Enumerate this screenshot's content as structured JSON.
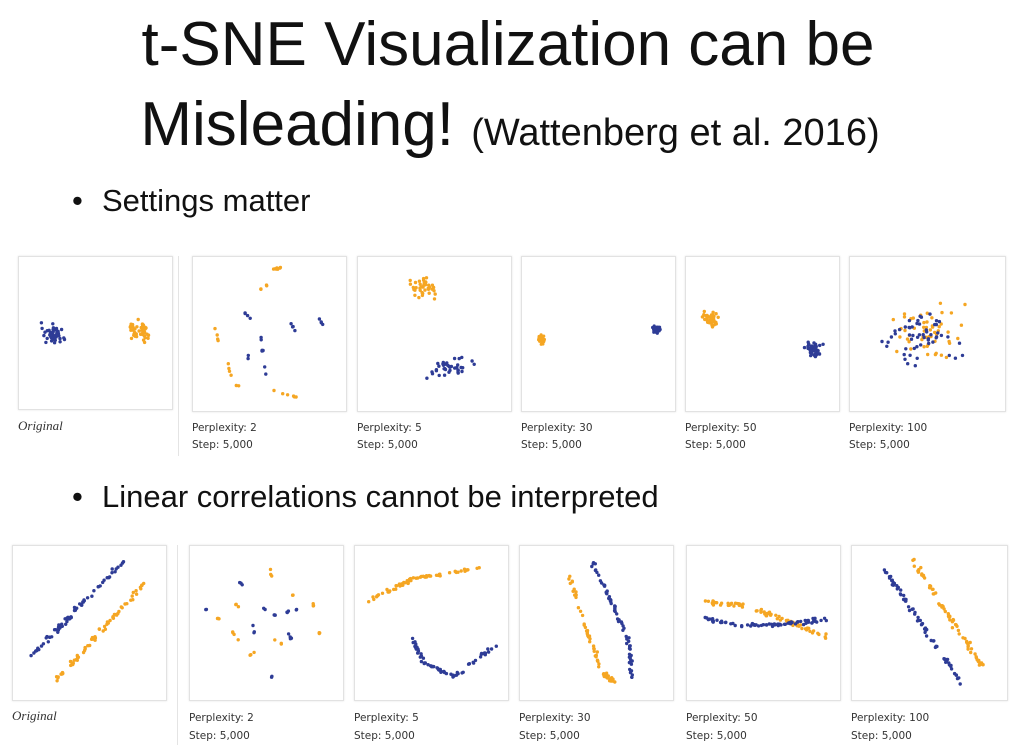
{
  "title": {
    "line1": "t-SNE Visualization can be",
    "line2": "Misleading!",
    "citation": "(Wattenberg et al. 2016)"
  },
  "bullet_symbol": "•",
  "sections": [
    {
      "bullet": "Settings matter",
      "original_label": "Original",
      "captions": [
        {
          "perplexity": "Perplexity: 2",
          "step": "Step: 5,000"
        },
        {
          "perplexity": "Perplexity: 5",
          "step": "Step: 5,000"
        },
        {
          "perplexity": "Perplexity: 30",
          "step": "Step: 5,000"
        },
        {
          "perplexity": "Perplexity: 50",
          "step": "Step: 5,000"
        },
        {
          "perplexity": "Perplexity: 100",
          "step": "Step: 5,000"
        }
      ]
    },
    {
      "bullet": "Linear correlations cannot be interpreted",
      "original_label": "Original",
      "captions": [
        {
          "perplexity": "Perplexity: 2",
          "step": "Step: 5,000"
        },
        {
          "perplexity": "Perplexity: 5",
          "step": "Step: 5,000"
        },
        {
          "perplexity": "Perplexity: 30",
          "step": "Step: 5,000"
        },
        {
          "perplexity": "Perplexity: 50",
          "step": "Step: 5,000"
        },
        {
          "perplexity": "Perplexity: 100",
          "step": "Step: 5,000"
        }
      ]
    }
  ],
  "colors": {
    "blue_points": "#2e3c96",
    "orange_points": "#f5a623"
  }
}
